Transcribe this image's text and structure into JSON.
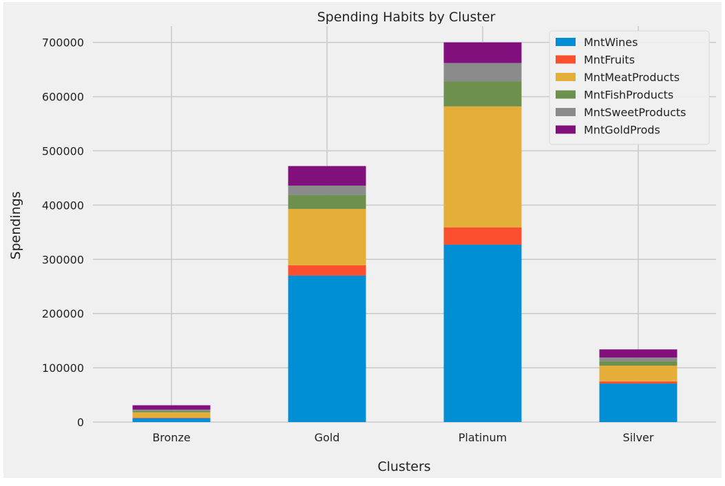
{
  "chart_data": {
    "type": "bar",
    "stacked": true,
    "title": "Spending Habits by Cluster",
    "xlabel": "Clusters",
    "ylabel": "Spendings",
    "categories": [
      "Bronze",
      "Gold",
      "Platinum",
      "Silver"
    ],
    "ylim": [
      0,
      730000
    ],
    "yticks": [
      0,
      100000,
      200000,
      300000,
      400000,
      500000,
      600000,
      700000
    ],
    "grid": true,
    "legend_position": "top-right",
    "background_color": "#f0f0f0",
    "series": [
      {
        "name": "MntWines",
        "color": "#008fd5",
        "values": [
          7000,
          270000,
          327000,
          71000
        ]
      },
      {
        "name": "MntFruits",
        "color": "#fc4f30",
        "values": [
          1000,
          19000,
          32000,
          4000
        ]
      },
      {
        "name": "MntMeatProducts",
        "color": "#e5ae38",
        "values": [
          10000,
          104000,
          223000,
          29000
        ]
      },
      {
        "name": "MntFishProducts",
        "color": "#6d904f",
        "values": [
          2500,
          26000,
          46000,
          8000
        ]
      },
      {
        "name": "MntSweetProducts",
        "color": "#8b8b8b",
        "values": [
          2500,
          17000,
          34000,
          7000
        ]
      },
      {
        "name": "MntGoldProds",
        "color": "#810f7c",
        "values": [
          8000,
          36000,
          38000,
          15000
        ]
      }
    ]
  }
}
